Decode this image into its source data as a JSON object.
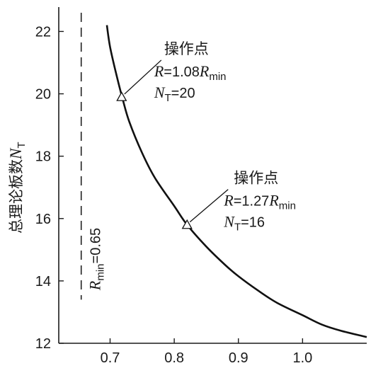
{
  "chart_data": {
    "type": "line",
    "xlim": [
      0.62,
      1.1
    ],
    "ylim": [
      12,
      22.6
    ],
    "x_ticks": [
      0.7,
      0.8,
      0.9,
      1.0
    ],
    "x_tick_labels": [
      "0.7",
      "0.8",
      "0.9",
      "1.0"
    ],
    "y_ticks": [
      12,
      14,
      16,
      18,
      20,
      22
    ],
    "y_tick_labels": [
      "12",
      "14",
      "16",
      "18",
      "20",
      "22"
    ],
    "ylabel": "总理论板数",
    "ylabel_symbol": "N",
    "ylabel_sub": "T",
    "series": [
      {
        "x": [
          0.695,
          0.7,
          0.71,
          0.72,
          0.73,
          0.75,
          0.77,
          0.8,
          0.82,
          0.85,
          0.88,
          0.9,
          0.93,
          0.96,
          1.0,
          1.03,
          1.06,
          1.1
        ],
        "y": [
          22.2,
          21.5,
          20.6,
          19.8,
          19.1,
          18.1,
          17.3,
          16.4,
          15.8,
          15.1,
          14.5,
          14.15,
          13.7,
          13.3,
          12.9,
          12.6,
          12.4,
          12.2
        ]
      }
    ],
    "reference_line": {
      "x": 0.655,
      "y_range": [
        13.4,
        22.6
      ],
      "style": "dashed",
      "label_symbol": "R",
      "label_sub": "min",
      "label_value": "=0.65"
    },
    "operating_points": [
      {
        "x": 0.718,
        "y": 19.9,
        "title": "操作点",
        "r_prefix": "R",
        "r_value": "=1.08",
        "r_symbol": "R",
        "r_sub": "min",
        "n_symbol": "N",
        "n_sub": "T",
        "n_value": "=20"
      },
      {
        "x": 0.82,
        "y": 15.8,
        "title": "操作点",
        "r_prefix": "R",
        "r_value": "=1.27",
        "r_symbol": "R",
        "r_sub": "min",
        "n_symbol": "N",
        "n_sub": "T",
        "n_value": "=16"
      }
    ],
    "grid": false,
    "colors": {
      "line": "#111111",
      "axes": "#1a1a1a"
    }
  }
}
